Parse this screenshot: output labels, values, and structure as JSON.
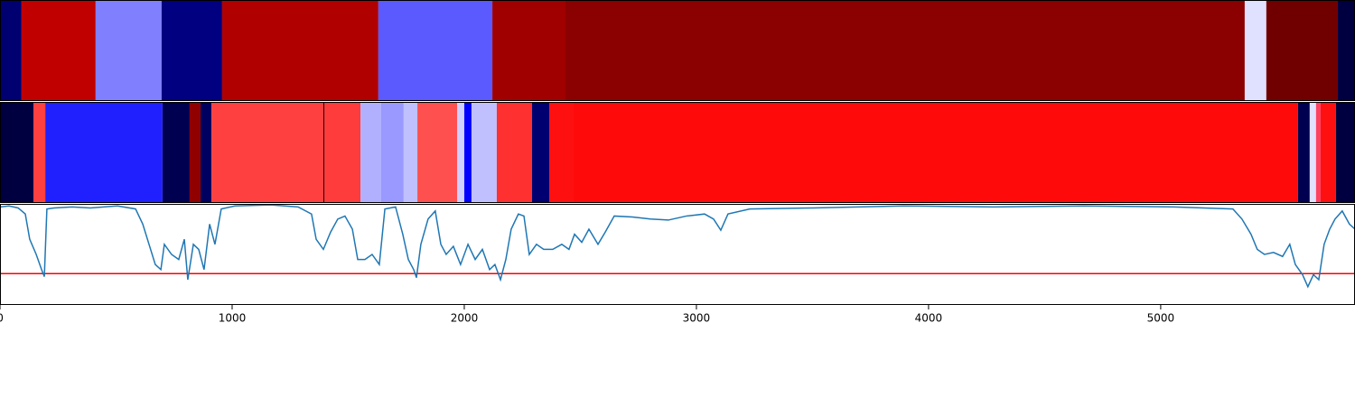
{
  "chart_data": [
    {
      "type": "segments",
      "xlim": [
        0,
        5837
      ],
      "bins": [
        0,
        93,
        412,
        696,
        957,
        1630,
        2121,
        2436,
        5362,
        5455,
        5763,
        5837
      ],
      "colors": [
        "#000070",
        "#c00000",
        "#8080ff",
        "#000080",
        "#b00000",
        "#5a5aff",
        "#a00000",
        "#8b0000",
        "#e0e0ff",
        "#700000",
        "#000040"
      ]
    },
    {
      "type": "segments",
      "xlim": [
        0,
        5837
      ],
      "bins": [
        0,
        144,
        195,
        700,
        817,
        864,
        911,
        1393,
        1397,
        1553,
        1642,
        1739,
        1798,
        1969,
        2000,
        2031,
        2140,
        2292,
        2366,
        2471,
        5591,
        5642,
        5669,
        5689,
        5755,
        5837
      ],
      "colors": [
        "#000040",
        "#ff4040",
        "#2020ff",
        "#000050",
        "#900000",
        "#000060",
        "#ff4040",
        "#200000",
        "#ff3c3c",
        "#b0b0ff",
        "#9999ff",
        "#c0c0ff",
        "#ff5050",
        "#d0d0ff",
        "#0000ff",
        "#c0c0ff",
        "#ff3030",
        "#000070",
        "#ff1010",
        "#ff0a0a",
        "#000050",
        "#e0e0ff",
        "#ff4060",
        "#ff1010",
        "#000040"
      ]
    },
    {
      "type": "line",
      "xlim": [
        0,
        5837
      ],
      "ylim": [
        0,
        1
      ],
      "xticks": [
        0,
        1000,
        2000,
        3000,
        4000,
        5000
      ],
      "hline": 0.31,
      "hline_color": "#ff0000",
      "x": [
        0,
        39,
        78,
        109,
        128,
        156,
        179,
        191,
        202,
        233,
        311,
        389,
        506,
        584,
        615,
        642,
        669,
        693,
        708,
        739,
        770,
        794,
        809,
        833,
        856,
        879,
        903,
        926,
        953,
        1012,
        1167,
        1284,
        1342,
        1362,
        1393,
        1424,
        1455,
        1486,
        1518,
        1541,
        1572,
        1603,
        1634,
        1658,
        1704,
        1735,
        1759,
        1782,
        1794,
        1813,
        1844,
        1875,
        1899,
        1922,
        1953,
        1984,
        2016,
        2047,
        2078,
        2109,
        2132,
        2156,
        2179,
        2202,
        2233,
        2257,
        2280,
        2311,
        2342,
        2381,
        2420,
        2451,
        2475,
        2506,
        2537,
        2576,
        2607,
        2646,
        2724,
        2802,
        2879,
        2957,
        3035,
        3074,
        3105,
        3136,
        3230,
        3502,
        3891,
        4280,
        4669,
        5058,
        5311,
        5350,
        5389,
        5416,
        5447,
        5486,
        5525,
        5556,
        5580,
        5611,
        5634,
        5658,
        5681,
        5704,
        5728,
        5751,
        5782,
        5813,
        5837
      ],
      "series": [
        {
          "color": "#1f77b4",
          "values": [
            0.97,
            0.98,
            0.96,
            0.9,
            0.65,
            0.5,
            0.35,
            0.28,
            0.95,
            0.96,
            0.97,
            0.96,
            0.98,
            0.95,
            0.8,
            0.6,
            0.4,
            0.35,
            0.6,
            0.5,
            0.45,
            0.65,
            0.25,
            0.6,
            0.55,
            0.35,
            0.8,
            0.6,
            0.95,
            0.98,
            0.99,
            0.97,
            0.9,
            0.65,
            0.55,
            0.72,
            0.85,
            0.88,
            0.75,
            0.45,
            0.45,
            0.5,
            0.4,
            0.95,
            0.97,
            0.7,
            0.45,
            0.35,
            0.27,
            0.6,
            0.85,
            0.93,
            0.6,
            0.5,
            0.58,
            0.4,
            0.6,
            0.45,
            0.55,
            0.35,
            0.4,
            0.25,
            0.45,
            0.75,
            0.9,
            0.88,
            0.5,
            0.6,
            0.55,
            0.55,
            0.6,
            0.55,
            0.7,
            0.62,
            0.75,
            0.6,
            0.72,
            0.88,
            0.87,
            0.85,
            0.84,
            0.88,
            0.9,
            0.85,
            0.74,
            0.9,
            0.95,
            0.96,
            0.98,
            0.97,
            0.98,
            0.97,
            0.95,
            0.85,
            0.7,
            0.55,
            0.5,
            0.52,
            0.48,
            0.6,
            0.4,
            0.3,
            0.18,
            0.3,
            0.25,
            0.6,
            0.75,
            0.85,
            0.93,
            0.8,
            0.75
          ]
        }
      ]
    }
  ]
}
